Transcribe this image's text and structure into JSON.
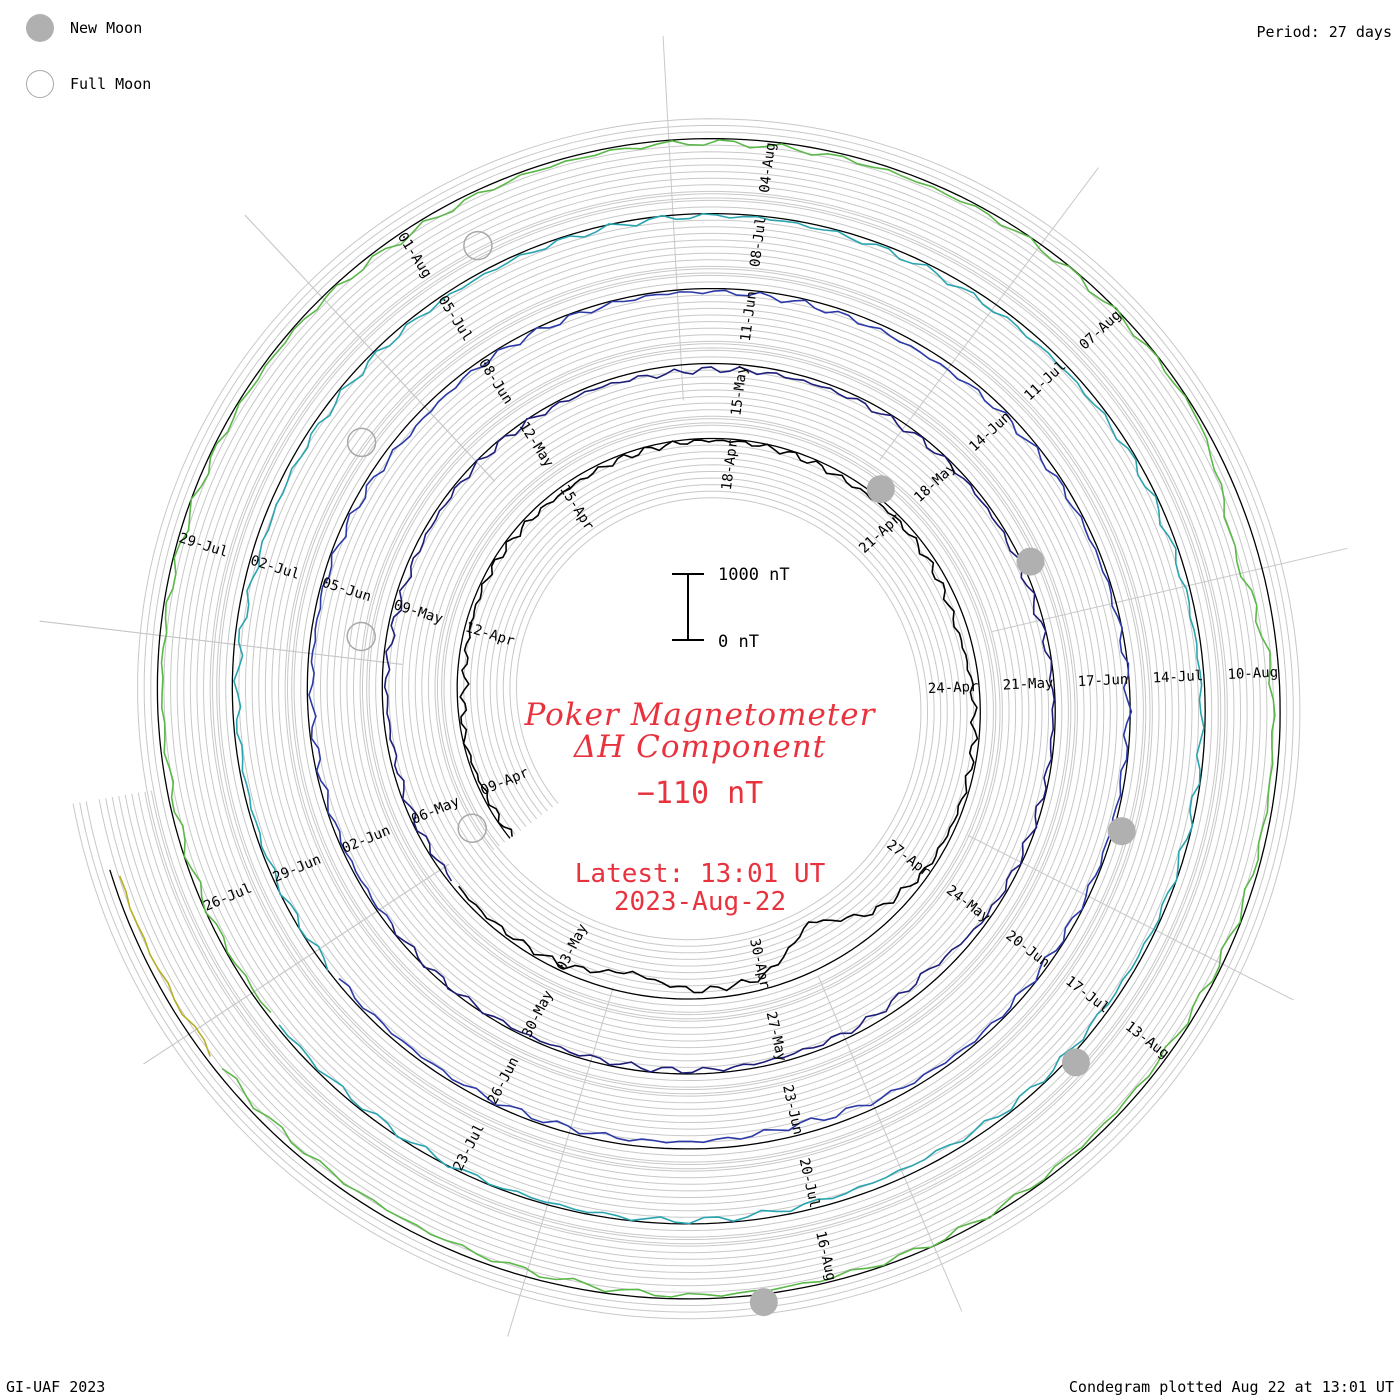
{
  "legend": {
    "new_moon_label": "New Moon",
    "full_moon_label": "Full Moon",
    "new_moon_color": "#b0b0b0",
    "full_moon_color": "#a8a8a8"
  },
  "period": "Period: 27 days",
  "footer_left": "GI-UAF 2023",
  "footer_right": "Condegram plotted Aug 22 at 13:01 UT",
  "center": {
    "title_line1": "Poker Magnetometer",
    "title_line2": "ΔH Component",
    "current_value": "−110 nT",
    "latest_line1": "Latest: 13:01 UT",
    "latest_line2": "2023-Aug-22",
    "text_color": "#e8333f"
  },
  "scale_bar": {
    "top_label": "1000 nT",
    "bottom_label": "0 nT",
    "value_nT": 1000
  },
  "chart_data": {
    "type": "line",
    "form": "spiral condegram",
    "period_days": 27,
    "start_date": "2023-04-08",
    "end_date": "2023-08-22",
    "component": "ΔH",
    "unit": "nT",
    "grid": true,
    "series_colors": [
      "#000000",
      "#1f1f7a",
      "#2b3aa8",
      "#2aa5b0",
      "#5cb84a",
      "#b5b025",
      "#c77a1e",
      "#c0392b"
    ],
    "date_labels": [
      "09-Apr",
      "12-Apr",
      "15-Apr",
      "18-Apr",
      "21-Apr",
      "24-Apr",
      "27-Apr",
      "30-Apr",
      "03-May",
      "06-May",
      "09-May",
      "12-May",
      "15-May",
      "18-May",
      "21-May",
      "24-May",
      "27-May",
      "30-May",
      "02-Jun",
      "05-Jun",
      "08-Jun",
      "11-Jun",
      "14-Jun",
      "17-Jun",
      "20-Jun",
      "23-Jun",
      "26-Jun",
      "29-Jun",
      "02-Jul",
      "05-Jul",
      "08-Jul",
      "11-Jul",
      "14-Jul",
      "17-Jul",
      "20-Jul",
      "23-Jul",
      "26-Jul",
      "29-Jul",
      "01-Aug",
      "04-Aug",
      "07-Aug",
      "10-Aug",
      "13-Aug",
      "16-Aug"
    ],
    "new_moons": [
      "2023-04-20",
      "2023-05-19",
      "2023-06-18",
      "2023-07-17",
      "2023-08-16"
    ],
    "full_moons": [
      "2023-05-05",
      "2023-06-04",
      "2023-07-03",
      "2023-08-01"
    ],
    "delta_h_daily_nT": [
      -40,
      -60,
      -30,
      -120,
      -80,
      -50,
      -70,
      -90,
      -60,
      -40,
      -30,
      -50,
      -80,
      -60,
      -100,
      -160,
      -110,
      -70,
      -60,
      -80,
      -250,
      -700,
      -180,
      -120,
      -320,
      -90,
      -70,
      -60,
      -50,
      -80,
      -60,
      -90,
      -70,
      -50,
      -40,
      -60,
      -110,
      -80,
      -70,
      -60,
      -40,
      -50,
      -60,
      -30,
      -40,
      -50,
      -60,
      -180,
      -90,
      -70,
      -50,
      -60,
      -40,
      -30,
      -50,
      -40,
      -60,
      -70,
      -50,
      -80,
      -120,
      -60,
      -50,
      -40,
      -60,
      -80,
      -100,
      -70,
      -60,
      -40,
      -30,
      -50,
      -40,
      -60,
      -50,
      -90,
      -160,
      -110,
      -80,
      -60,
      -70,
      -50,
      -40,
      -60,
      -80,
      -120,
      -90,
      -70,
      -60,
      -50,
      -40,
      -30,
      -60,
      -90,
      -70,
      -60,
      -80,
      -60,
      -50,
      -40,
      -70,
      -60,
      -120,
      -90,
      -50,
      -40,
      -30,
      -60,
      -50,
      -40,
      -80,
      -70,
      -60,
      -50,
      -40,
      -90,
      -60,
      -50,
      -70,
      -60,
      -50,
      -40,
      -30,
      -350,
      -120,
      -80,
      -60,
      -70,
      -50,
      -40,
      -60,
      -50,
      -90,
      -110
    ]
  }
}
